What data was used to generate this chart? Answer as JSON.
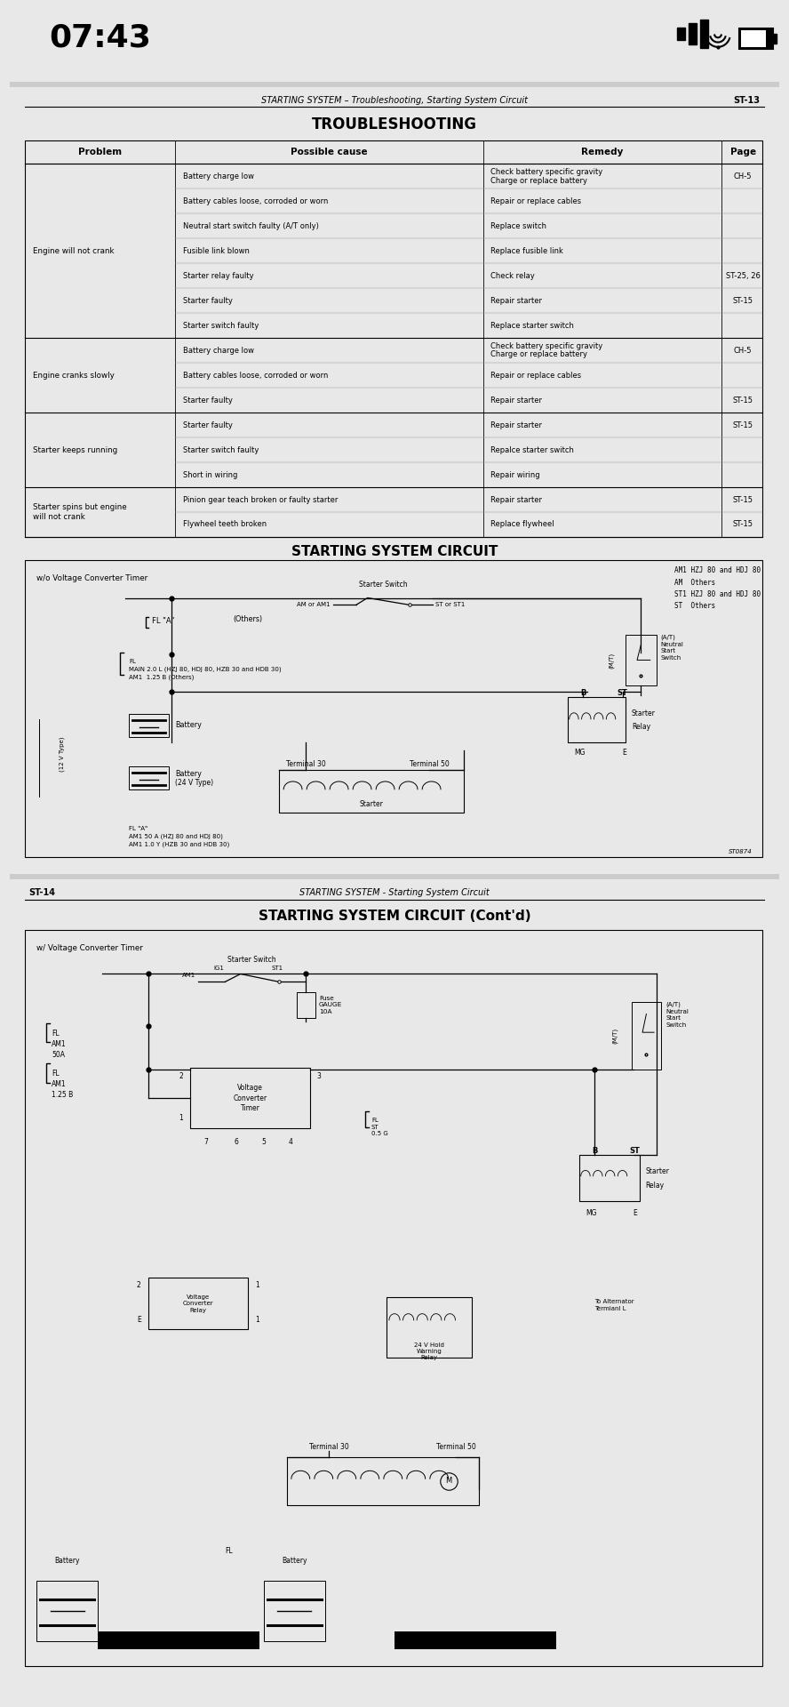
{
  "bg_color": "#e8e8e8",
  "page_bg": "#ffffff",
  "title_time": "07:43",
  "page1_header": "STARTING SYSTEM – Troubleshooting, Starting System Circuit",
  "page1_num": "ST-13",
  "troubleshooting_title": "TROUBLESHOOTING",
  "table_headers": [
    "Problem",
    "Possible cause",
    "Remedy",
    "Page"
  ],
  "table_rows": [
    [
      "Engine will not crank",
      "Battery charge low",
      "Check battery specific gravity\nCharge or replace battery",
      "CH-5"
    ],
    [
      "",
      "Battery cables loose, corroded or worn",
      "Repair or replace cables",
      ""
    ],
    [
      "",
      "Neutral start switch faulty (A/T only)",
      "Replace switch",
      ""
    ],
    [
      "",
      "Fusible link blown",
      "Replace fusible link",
      ""
    ],
    [
      "",
      "Starter relay faulty",
      "Check relay",
      "ST-25, 26"
    ],
    [
      "",
      "Starter faulty",
      "Repair starter",
      "ST-15"
    ],
    [
      "",
      "Starter switch faulty",
      "Replace starter switch",
      ""
    ],
    [
      "Engine cranks slowly",
      "Battery charge low",
      "Check battery specific gravity\nCharge or replace battery",
      "CH-5"
    ],
    [
      "",
      "Battery cables loose, corroded or worn",
      "Repair or replace cables",
      ""
    ],
    [
      "",
      "Starter faulty",
      "Repair starter",
      "ST-15"
    ],
    [
      "Starter keeps running",
      "Starter faulty",
      "Repair starter",
      "ST-15"
    ],
    [
      "",
      "Starter switch faulty",
      "Repalce starter switch",
      ""
    ],
    [
      "",
      "Short in wiring",
      "Repair wiring",
      ""
    ],
    [
      "Starter spins but engine\nwill not crank",
      "Pinion gear teach broken or faulty starter",
      "Repair starter",
      "ST-15"
    ],
    [
      "",
      "Flywheel teeth broken",
      "Replace flywheel",
      "ST-15"
    ]
  ],
  "circuit1_title": "STARTING SYSTEM CIRCUIT",
  "circuit1_label": "w/o Voltage Converter Timer",
  "circuit1_legend": "AM1 HZJ 80 and HDJ 80\nAM  Others\nST1 HZJ 80 and HDJ 80\nST  Others",
  "page2_header": "STARTING SYSTEM - Starting System Circuit",
  "page2_num": "ST-14",
  "circuit2_title": "STARTING SYSTEM CIRCUIT (Cont'd)",
  "circuit2_label": "w/ Voltage Converter Timer"
}
